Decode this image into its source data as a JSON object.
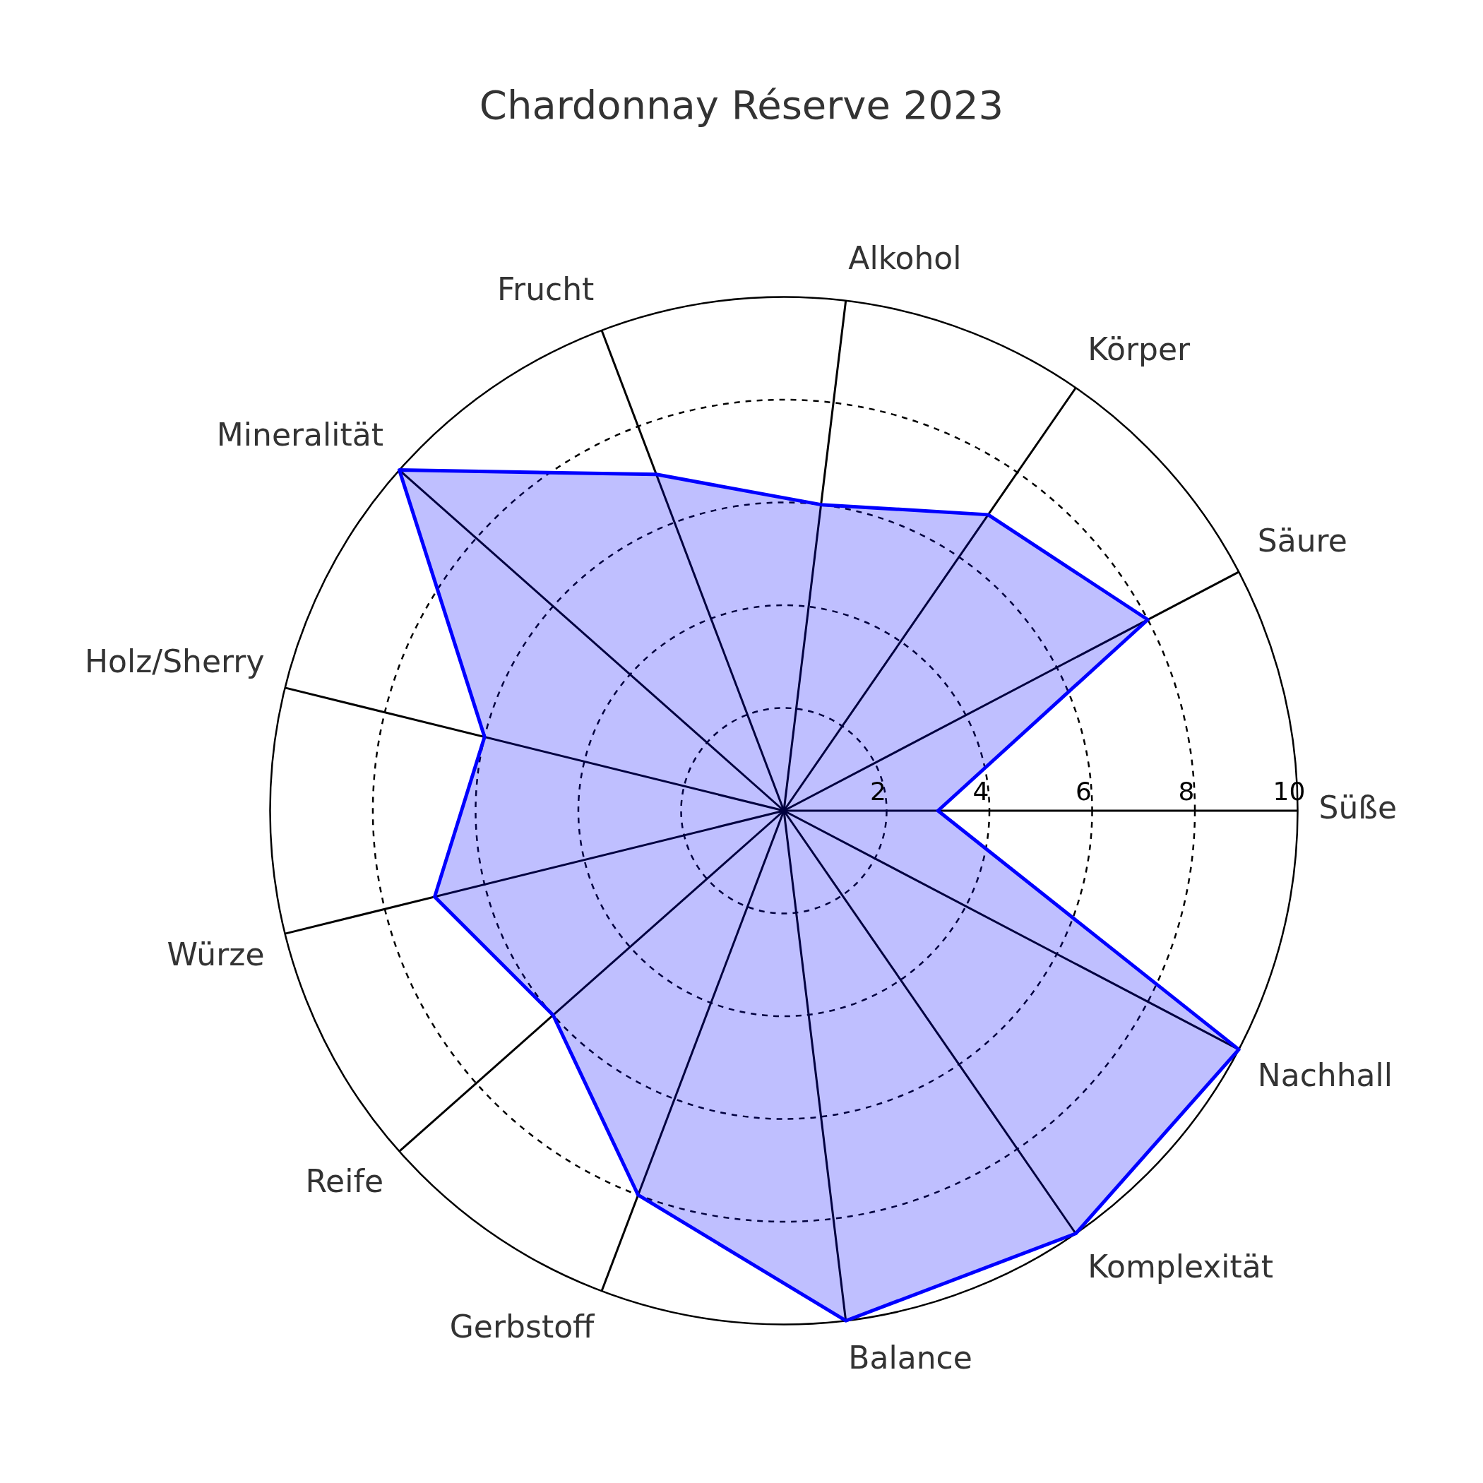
{
  "chart_data": {
    "type": "radar",
    "title": "Chardonnay Réserve 2023",
    "categories": [
      "Alkohol",
      "Körper",
      "Säure",
      "Süße",
      "Nachhall",
      "Komplexität",
      "Balance",
      "Gerbstoff",
      "Reife",
      "Würze",
      "Holz/Sherry",
      "Mineralität",
      "Frucht"
    ],
    "series": [
      {
        "color": "#0000ff",
        "values": [
          6,
          7,
          8,
          3,
          10,
          10,
          10,
          8,
          6,
          7,
          6,
          10,
          7
        ]
      }
    ],
    "ylim": [
      0,
      10
    ],
    "yticks": [
      2,
      4,
      6,
      8,
      10
    ],
    "grid": true,
    "legend": false,
    "marker": "none"
  }
}
